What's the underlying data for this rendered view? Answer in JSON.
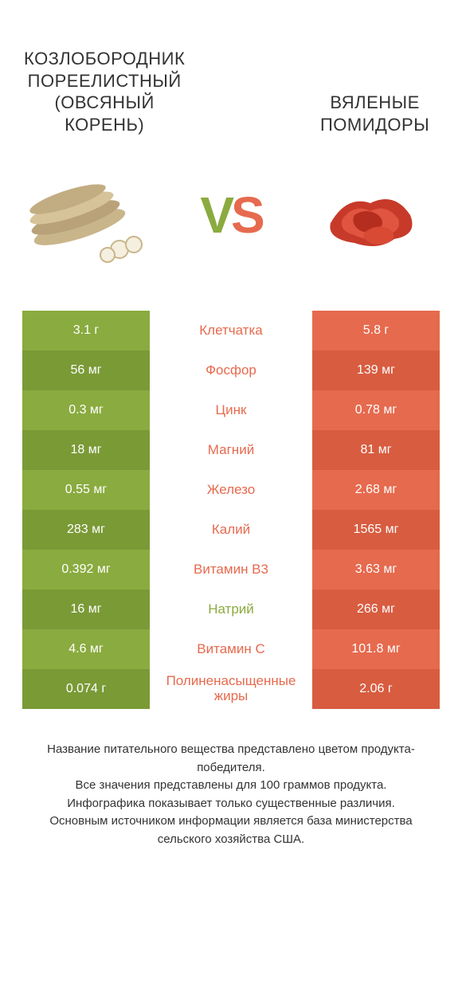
{
  "colors": {
    "left": "#8aab3f",
    "leftAlt": "#7a9a36",
    "right": "#e66a4e",
    "rightAlt": "#d85c40",
    "bg": "#ffffff",
    "text": "#333333"
  },
  "header": {
    "leftTitle": "КОЗЛОБОРОДНИК ПОРЕЕЛИСТНЫЙ (ОВСЯНЫЙ КОРЕНЬ)",
    "rightTitle": "ВЯЛЕНЫЕ ПОМИДОРЫ",
    "vs": {
      "v": "V",
      "s": "S"
    }
  },
  "rows": [
    {
      "label": "Клетчатка",
      "left": "3.1 г",
      "right": "5.8 г",
      "winner": "right"
    },
    {
      "label": "Фосфор",
      "left": "56 мг",
      "right": "139 мг",
      "winner": "right"
    },
    {
      "label": "Цинк",
      "left": "0.3 мг",
      "right": "0.78 мг",
      "winner": "right"
    },
    {
      "label": "Магний",
      "left": "18 мг",
      "right": "81 мг",
      "winner": "right"
    },
    {
      "label": "Железо",
      "left": "0.55 мг",
      "right": "2.68 мг",
      "winner": "right"
    },
    {
      "label": "Калий",
      "left": "283 мг",
      "right": "1565 мг",
      "winner": "right"
    },
    {
      "label": "Витамин B3",
      "left": "0.392 мг",
      "right": "3.63 мг",
      "winner": "right"
    },
    {
      "label": "Натрий",
      "left": "16 мг",
      "right": "266 мг",
      "winner": "left"
    },
    {
      "label": "Витамин C",
      "left": "4.6 мг",
      "right": "101.8 мг",
      "winner": "right"
    },
    {
      "label": "Полиненасыщенные жиры",
      "left": "0.074 г",
      "right": "2.06 г",
      "winner": "right"
    }
  ],
  "footer": {
    "line1": "Название питательного вещества представлено цветом продукта-победителя.",
    "line2": "Все значения представлены для 100 граммов продукта.",
    "line3": "Инфографика показывает только существенные различия.",
    "line4": "Основным источником информации является база министерства сельского хозяйства США."
  }
}
